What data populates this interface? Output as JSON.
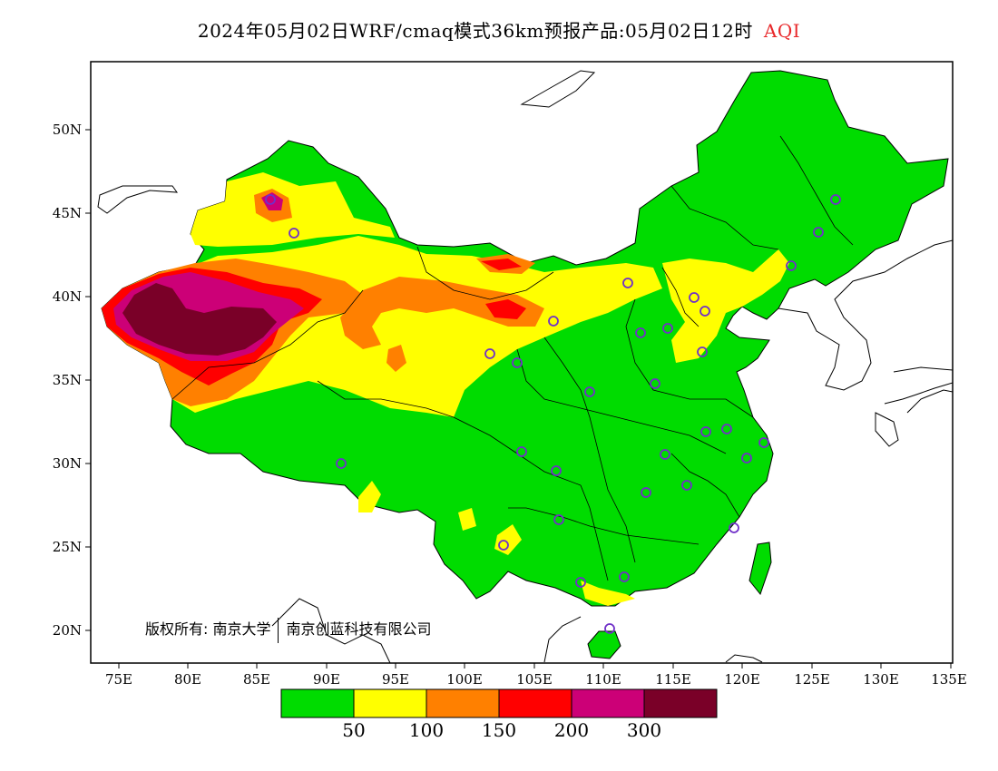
{
  "header": {
    "title": "2024年05月02日WRF/cmaq模式36km预报产品:05月02日12时",
    "variable": "AQI"
  },
  "map": {
    "lon_ticks": [
      "75E",
      "80E",
      "85E",
      "90E",
      "95E",
      "100E",
      "105E",
      "110E",
      "115E",
      "120E",
      "125E",
      "130E",
      "135E"
    ],
    "lat_ticks": [
      "50N",
      "45N",
      "40N",
      "35N",
      "30N",
      "25N",
      "20N"
    ],
    "copyright": "版权所有: 南京大学",
    "copyright_org": "南京创蓝科技有限公司"
  },
  "legend": {
    "colors": [
      "#00dc00",
      "#ffff00",
      "#ff8000",
      "#ff0000",
      "#cc0077",
      "#7a0028"
    ],
    "labels": [
      "50",
      "100",
      "150",
      "200",
      "300"
    ]
  }
}
